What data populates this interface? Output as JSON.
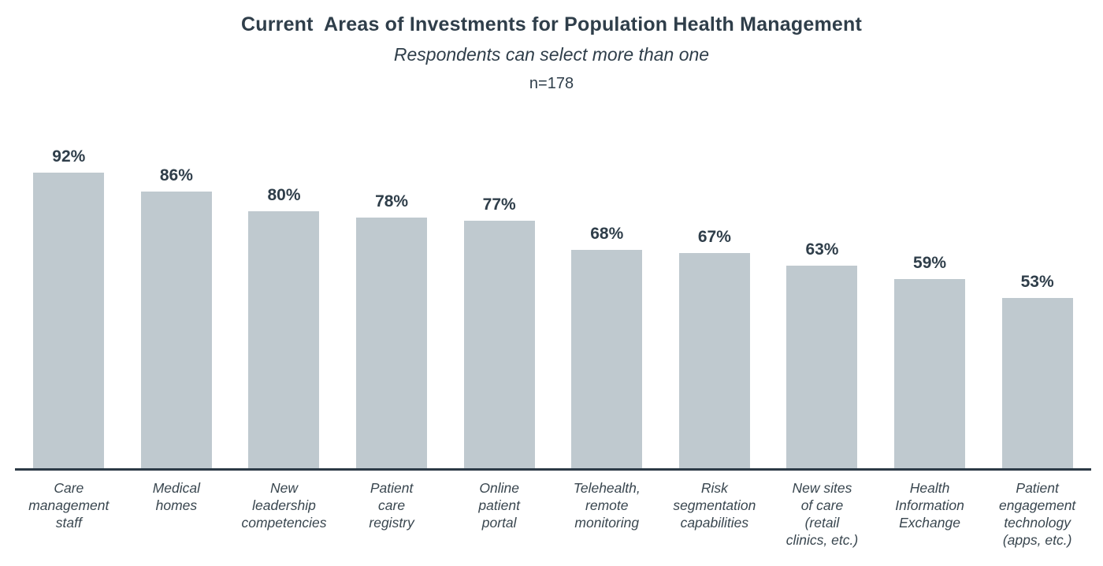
{
  "chart_data": {
    "type": "bar",
    "title": "Current  Areas of Investments for Population Health Management",
    "subtitle": "Respondents can select more than one",
    "sample_size": "n=178",
    "categories": [
      "Care management staff",
      "Medical homes",
      "New leadership competencies",
      "Patient care registry",
      "Online patient portal",
      "Telehealth, remote monitoring",
      "Risk segmentation capabilities",
      "New sites of care (retail clinics, etc.)",
      "Health Information Exchange",
      "Patient engagement technology (apps, etc.)"
    ],
    "category_label_lines": [
      [
        "Care",
        "management",
        "staff"
      ],
      [
        "Medical",
        "homes"
      ],
      [
        "New",
        "leadership",
        "competencies"
      ],
      [
        "Patient",
        "care",
        "registry"
      ],
      [
        "Online",
        "patient",
        "portal"
      ],
      [
        "Telehealth,",
        "remote",
        "monitoring"
      ],
      [
        "Risk",
        "segmentation",
        "capabilities"
      ],
      [
        "New sites",
        "of care",
        "(retail",
        "clinics, etc.)"
      ],
      [
        "Health",
        "Information",
        "Exchange"
      ],
      [
        "Patient",
        "engagement",
        "technology",
        "(apps, etc.)"
      ]
    ],
    "values": [
      92,
      86,
      80,
      78,
      77,
      68,
      67,
      63,
      59,
      53
    ],
    "value_suffix": "%",
    "value_label_position": "above-bar",
    "xlabel": "",
    "ylabel": "",
    "ylim": [
      0,
      100
    ],
    "grid": false,
    "legend": false,
    "y_axis_visible": false,
    "x_axis_line_visible": true,
    "bar_color": "#bfc9cf",
    "value_label_color": "#2f3e4a",
    "tick_label_color": "#39464f",
    "axis_color": "#2c3a46",
    "background_color": "#ffffff"
  }
}
